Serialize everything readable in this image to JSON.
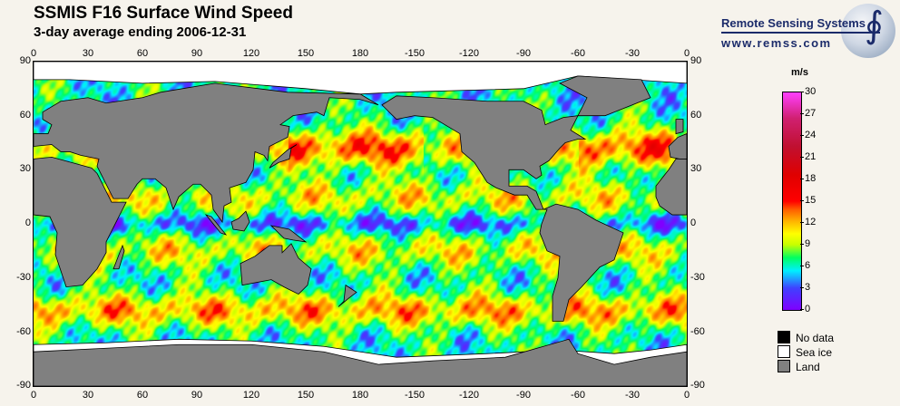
{
  "header": {
    "title": "SSMIS F16 Surface Wind Speed",
    "subtitle": "3-day average ending 2006-12-31"
  },
  "logo": {
    "name": "Remote Sensing Systems",
    "url": "www.remss.com"
  },
  "map": {
    "top_ticks": [
      "0",
      "30",
      "60",
      "90",
      "120",
      "150",
      "180",
      "-150",
      "-120",
      "-90",
      "-60",
      "-30",
      "0"
    ],
    "bottom_ticks": [
      "0",
      "30",
      "60",
      "90",
      "120",
      "150",
      "180",
      "-150",
      "-120",
      "-90",
      "-60",
      "-30",
      "0"
    ],
    "left_ticks": [
      "90",
      "60",
      "30",
      "0",
      "-30",
      "-60",
      "-90"
    ],
    "right_ticks": [
      "90",
      "60",
      "30",
      "0",
      "-30",
      "-60",
      "-90"
    ],
    "colors": {
      "land": "#808080",
      "sea_ice": "#ffffff",
      "no_data": "#000000"
    }
  },
  "colorbar": {
    "unit": "m/s",
    "ticks": [
      "30",
      "27",
      "24",
      "21",
      "18",
      "15",
      "12",
      "9",
      "6",
      "3",
      "0"
    ],
    "range": [
      0,
      30
    ]
  },
  "legend": [
    {
      "label": "No data",
      "color": "#000000"
    },
    {
      "label": "Sea ice",
      "color": "#ffffff"
    },
    {
      "label": "Land",
      "color": "#808080"
    }
  ]
}
